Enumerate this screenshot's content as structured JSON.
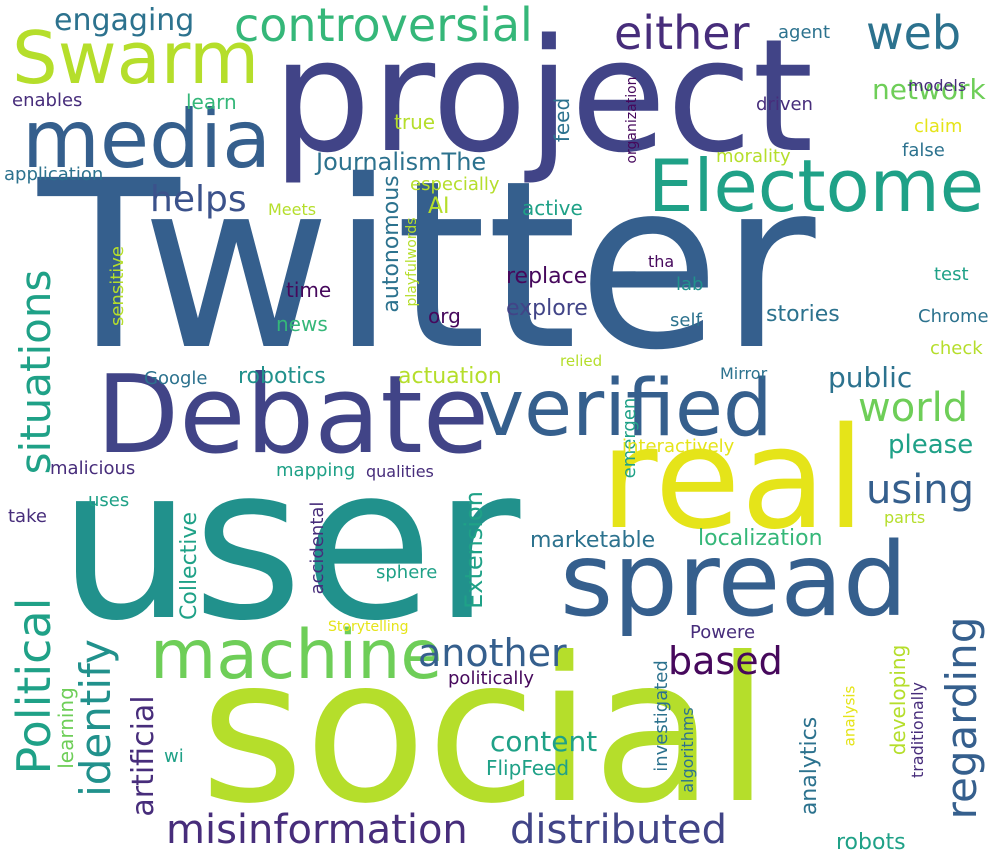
{
  "words": {
    "twitter": "Twitter",
    "user": "user",
    "social": "social",
    "project": "project",
    "debate": "Debate",
    "real": "real",
    "spread": "spread",
    "verified": "verified",
    "electome": "Electome",
    "media": "media",
    "swarm": "Swarm",
    "machine": "machine",
    "controversial": "controversial",
    "political": "Political",
    "situations": "situations",
    "identify": "identify",
    "misinformation": "misinformation",
    "distributed": "distributed",
    "regarding": "regarding",
    "either": "either",
    "web": "web",
    "world": "world",
    "using": "using",
    "based": "based",
    "another": "another",
    "helps": "helps",
    "engaging": "engaging",
    "network": "network",
    "public": "public",
    "please": "please",
    "content": "content",
    "artificial": "artificial",
    "emergen": "emergen",
    "extension": "Extension",
    "journalismthe": "JournalismThe",
    "robotics": "robotics",
    "actuation": "actuation",
    "localization": "localization",
    "marketable": "marketable",
    "replace": "replace",
    "explore": "explore",
    "stories": "stories",
    "active": "active",
    "ai": "AI",
    "time": "time",
    "news": "news",
    "org": "org",
    "lab": "lab",
    "self": "self",
    "chrome": "Chrome",
    "mirror": "Mirror",
    "google": "Google",
    "collective": "Collective",
    "autonomous": "autonomous",
    "analytics": "analytics",
    "developing": "developing",
    "traditionally": "traditionally",
    "robots": "robots",
    "flipfeed": "FlipFeed",
    "politically": "politically",
    "powere": "Powere",
    "investigated": "investigated",
    "algorithms": "algorithms",
    "analysis": "analysis",
    "accidental": "accidental",
    "sphere": "sphere",
    "storytelling": "Storytelling",
    "mapping": "mapping",
    "qualities": "qualities",
    "malicious": "malicious",
    "uses": "uses",
    "take": "take",
    "wi": "wi",
    "learning": "learning",
    "sensitive": "sensitive",
    "meets": "Meets",
    "playfulwords": "playfulwords",
    "especially": "especially",
    "application": "application",
    "enables": "enables",
    "learn": "learn",
    "true": "true",
    "feed": "feed",
    "morality": "morality",
    "false": "false",
    "claim": "claim",
    "driven": "driven",
    "models": "models",
    "agent": "agent",
    "organization": "organization",
    "tha": "tha",
    "test": "test",
    "check": "check",
    "relied": "relied",
    "interactively": "interactively",
    "parts": "parts"
  },
  "palette": {
    "darkpurple": "#472d7b",
    "indigo": "#414487",
    "blue": "#3b528b",
    "steel": "#355f8d",
    "slate": "#2c728e",
    "teal": "#21918c",
    "seagreen": "#1fa187",
    "green": "#35b779",
    "lightgreen": "#6ece58",
    "lime": "#b5de2b",
    "yellow": "#e5e419",
    "deepviolet": "#46085c"
  }
}
